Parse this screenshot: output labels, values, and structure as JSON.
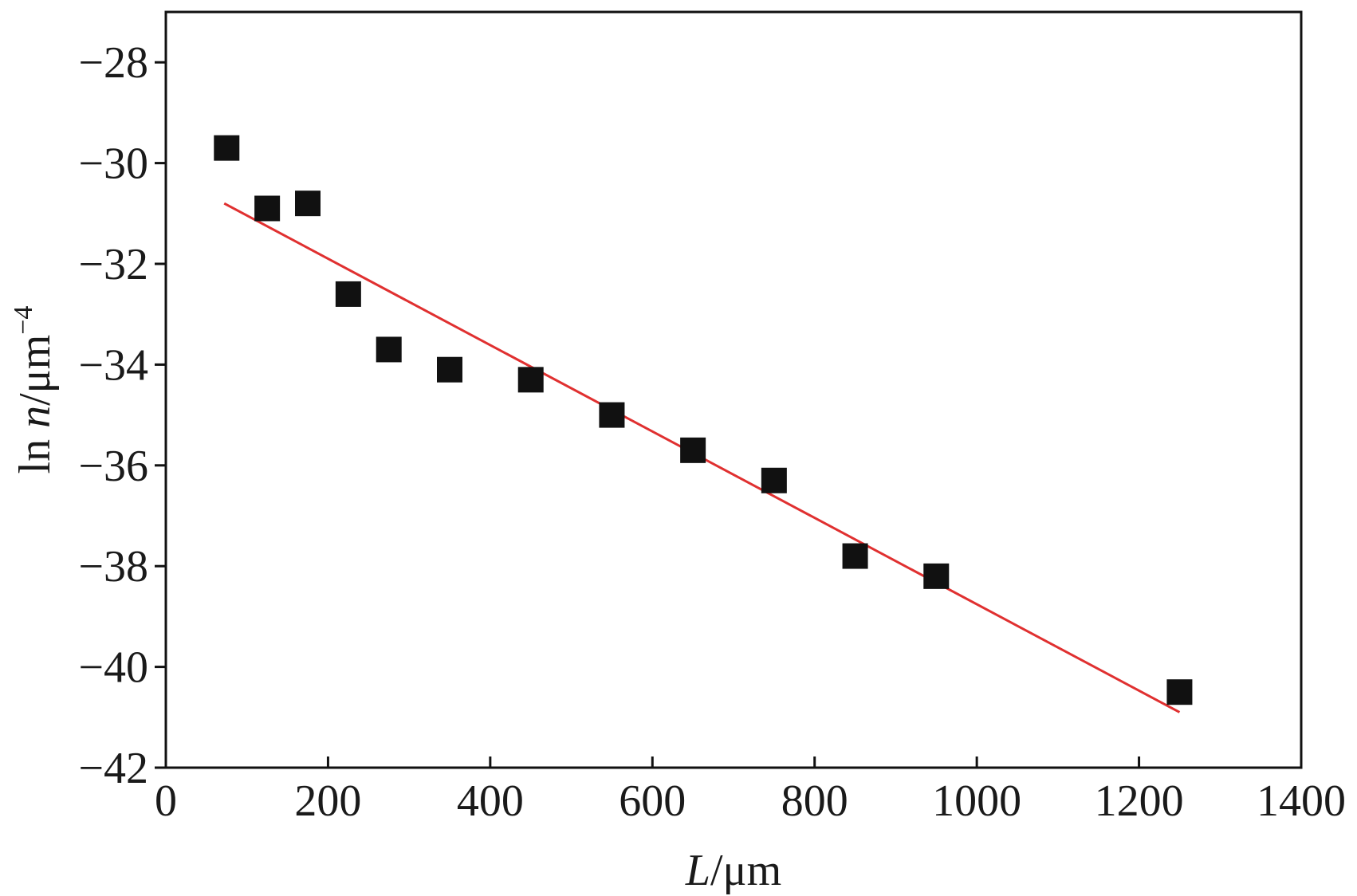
{
  "chart_data": {
    "type": "scatter",
    "xlabel_var": "L",
    "xlabel_unit": "/μm",
    "ylabel_prefix": "ln ",
    "ylabel_var": "n",
    "ylabel_unit": "/μm",
    "ylabel_exp": "−4",
    "xlim": [
      0,
      1400
    ],
    "ylim": [
      -42,
      -27
    ],
    "xticks": [
      0,
      200,
      400,
      600,
      800,
      1000,
      1200,
      1400
    ],
    "xtick_labels": [
      "0",
      "200",
      "400",
      "600",
      "800",
      "1000",
      "1200",
      "1400"
    ],
    "yticks": [
      -28,
      -30,
      -32,
      -34,
      -36,
      -38,
      -40,
      -42
    ],
    "ytick_labels": [
      "−28",
      "−30",
      "−32",
      "−34",
      "−36",
      "−38",
      "−40",
      "−42"
    ],
    "grid": false,
    "series": [
      {
        "type": "scatter",
        "marker": "square",
        "color": "#111111",
        "points": [
          {
            "x": 75,
            "y": -29.7
          },
          {
            "x": 125,
            "y": -30.9
          },
          {
            "x": 175,
            "y": -30.8
          },
          {
            "x": 225,
            "y": -32.6
          },
          {
            "x": 275,
            "y": -33.7
          },
          {
            "x": 350,
            "y": -34.1
          },
          {
            "x": 450,
            "y": -34.3
          },
          {
            "x": 550,
            "y": -35.0
          },
          {
            "x": 650,
            "y": -35.7
          },
          {
            "x": 750,
            "y": -36.3
          },
          {
            "x": 850,
            "y": -37.8
          },
          {
            "x": 950,
            "y": -38.2
          },
          {
            "x": 1250,
            "y": -40.5
          }
        ]
      },
      {
        "type": "line",
        "color": "#e03030",
        "points": [
          {
            "x": 72,
            "y": -30.8
          },
          {
            "x": 1250,
            "y": -40.9
          }
        ]
      }
    ]
  }
}
